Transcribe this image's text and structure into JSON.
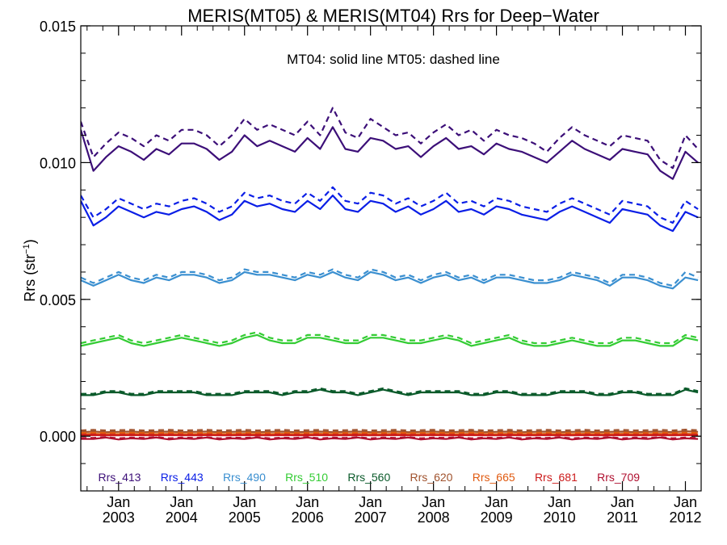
{
  "chart_data": {
    "type": "line",
    "title": "MERIS(MT05) & MERIS(MT04)  Rrs for Deep−Water",
    "annotation": "MT04: solid line   MT05: dashed line",
    "ylabel_main": "Rrs (str",
    "ylabel_sup": "−1",
    "ylabel_close": ")",
    "xlabel": "",
    "xlim": [
      2002.4,
      2012.25
    ],
    "ylim": [
      -0.002,
      0.015
    ],
    "yticks": [
      {
        "value": 0.0,
        "label": "0.000"
      },
      {
        "value": 0.005,
        "label": "0.005"
      },
      {
        "value": 0.01,
        "label": "0.010"
      },
      {
        "value": 0.015,
        "label": "0.015"
      }
    ],
    "xticks": [
      {
        "value": 2003,
        "month": "Jan",
        "year": "2003"
      },
      {
        "value": 2004,
        "month": "Jan",
        "year": "2004"
      },
      {
        "value": 2005,
        "month": "Jan",
        "year": "2005"
      },
      {
        "value": 2006,
        "month": "Jan",
        "year": "2006"
      },
      {
        "value": 2007,
        "month": "Jan",
        "year": "2007"
      },
      {
        "value": 2008,
        "month": "Jan",
        "year": "2008"
      },
      {
        "value": 2009,
        "month": "Jan",
        "year": "2009"
      },
      {
        "value": 2010,
        "month": "Jan",
        "year": "2010"
      },
      {
        "value": 2011,
        "month": "Jan",
        "year": "2011"
      },
      {
        "value": 2012,
        "month": "Jan",
        "year": "2012"
      }
    ],
    "grid": false,
    "legend_position": "bottom",
    "x": [
      2002.4,
      2002.6,
      2002.8,
      2003.0,
      2003.2,
      2003.4,
      2003.6,
      2003.8,
      2004.0,
      2004.2,
      2004.4,
      2004.6,
      2004.8,
      2005.0,
      2005.2,
      2005.4,
      2005.6,
      2005.8,
      2006.0,
      2006.2,
      2006.4,
      2006.6,
      2006.8,
      2007.0,
      2007.2,
      2007.4,
      2007.6,
      2007.8,
      2008.0,
      2008.2,
      2008.4,
      2008.6,
      2008.8,
      2009.0,
      2009.2,
      2009.4,
      2009.6,
      2009.8,
      2010.0,
      2010.2,
      2010.4,
      2010.6,
      2010.8,
      2011.0,
      2011.2,
      2011.4,
      2011.6,
      2011.8,
      2012.0,
      2012.2
    ],
    "series": [
      {
        "name": "Rrs_413",
        "color": "#3c0f78",
        "mt04": [
          0.0112,
          0.0097,
          0.0102,
          0.0106,
          0.0104,
          0.0101,
          0.0105,
          0.0103,
          0.0107,
          0.0107,
          0.0105,
          0.0101,
          0.0104,
          0.011,
          0.0106,
          0.0108,
          0.0106,
          0.0104,
          0.0109,
          0.0105,
          0.0113,
          0.0105,
          0.0104,
          0.0109,
          0.0108,
          0.0105,
          0.0106,
          0.0102,
          0.0106,
          0.0109,
          0.0105,
          0.0106,
          0.0103,
          0.0107,
          0.0105,
          0.0104,
          0.0102,
          0.01,
          0.0104,
          0.0108,
          0.0105,
          0.0103,
          0.0101,
          0.0105,
          0.0104,
          0.0103,
          0.0097,
          0.0094,
          0.0104,
          0.01
        ],
        "mt05": [
          0.0115,
          0.0102,
          0.0107,
          0.0111,
          0.0109,
          0.0106,
          0.011,
          0.0108,
          0.0112,
          0.0112,
          0.011,
          0.0106,
          0.011,
          0.0116,
          0.0112,
          0.0114,
          0.0112,
          0.011,
          0.0115,
          0.011,
          0.012,
          0.0111,
          0.0109,
          0.0116,
          0.0113,
          0.011,
          0.0111,
          0.0107,
          0.0111,
          0.0114,
          0.011,
          0.0112,
          0.0108,
          0.0112,
          0.011,
          0.0109,
          0.0107,
          0.0104,
          0.0109,
          0.0113,
          0.011,
          0.0108,
          0.0106,
          0.011,
          0.0109,
          0.0108,
          0.0101,
          0.0098,
          0.011,
          0.0105
        ]
      },
      {
        "name": "Rrs_443",
        "color": "#0a1ee6",
        "mt04": [
          0.0086,
          0.0077,
          0.008,
          0.0084,
          0.0082,
          0.008,
          0.0082,
          0.0081,
          0.0083,
          0.0084,
          0.0082,
          0.0079,
          0.0081,
          0.0086,
          0.0084,
          0.0085,
          0.0083,
          0.0082,
          0.0086,
          0.0083,
          0.0088,
          0.0083,
          0.0082,
          0.0086,
          0.0085,
          0.0082,
          0.0084,
          0.0081,
          0.0083,
          0.0086,
          0.0082,
          0.0083,
          0.0081,
          0.0084,
          0.0083,
          0.0081,
          0.008,
          0.0079,
          0.0082,
          0.0084,
          0.0082,
          0.008,
          0.0078,
          0.0083,
          0.0082,
          0.0081,
          0.0077,
          0.0075,
          0.0082,
          0.008
        ],
        "mt05": [
          0.0088,
          0.008,
          0.0083,
          0.0087,
          0.0085,
          0.0083,
          0.0085,
          0.0084,
          0.0086,
          0.0087,
          0.0085,
          0.0082,
          0.0084,
          0.0089,
          0.0087,
          0.0088,
          0.0086,
          0.0085,
          0.0089,
          0.0086,
          0.0091,
          0.0086,
          0.0085,
          0.0089,
          0.0088,
          0.0085,
          0.0087,
          0.0084,
          0.0086,
          0.0089,
          0.0085,
          0.0086,
          0.0084,
          0.0087,
          0.0086,
          0.0084,
          0.0083,
          0.0082,
          0.0085,
          0.0087,
          0.0085,
          0.0083,
          0.0081,
          0.0086,
          0.0085,
          0.0084,
          0.008,
          0.0078,
          0.0086,
          0.0083
        ]
      },
      {
        "name": "Rrs_490",
        "color": "#3a8fd0",
        "mt04": [
          0.0057,
          0.0055,
          0.0057,
          0.0059,
          0.0057,
          0.0056,
          0.0058,
          0.0057,
          0.0059,
          0.0059,
          0.0058,
          0.0056,
          0.0057,
          0.006,
          0.0059,
          0.0059,
          0.0058,
          0.0057,
          0.0059,
          0.0058,
          0.006,
          0.0058,
          0.0057,
          0.006,
          0.0059,
          0.0057,
          0.0058,
          0.0056,
          0.0058,
          0.0059,
          0.0057,
          0.0058,
          0.0056,
          0.0058,
          0.0058,
          0.0057,
          0.0056,
          0.0056,
          0.0057,
          0.0059,
          0.0058,
          0.0057,
          0.0055,
          0.0058,
          0.0058,
          0.0057,
          0.0055,
          0.0054,
          0.0058,
          0.0057
        ],
        "mt05": [
          0.0058,
          0.0056,
          0.0058,
          0.006,
          0.0058,
          0.0057,
          0.0059,
          0.0058,
          0.006,
          0.006,
          0.0059,
          0.0057,
          0.0058,
          0.0061,
          0.006,
          0.006,
          0.0059,
          0.0058,
          0.006,
          0.0059,
          0.0061,
          0.0059,
          0.0058,
          0.0061,
          0.006,
          0.0058,
          0.0059,
          0.0057,
          0.0059,
          0.006,
          0.0058,
          0.0059,
          0.0057,
          0.0059,
          0.0059,
          0.0058,
          0.0057,
          0.0057,
          0.0058,
          0.006,
          0.0059,
          0.0058,
          0.0056,
          0.0059,
          0.0059,
          0.0058,
          0.0056,
          0.0055,
          0.006,
          0.0058
        ]
      },
      {
        "name": "Rrs_510",
        "color": "#33cc33",
        "mt04": [
          0.0033,
          0.0034,
          0.0035,
          0.0036,
          0.0034,
          0.0033,
          0.0034,
          0.0035,
          0.0036,
          0.0035,
          0.0034,
          0.0033,
          0.0034,
          0.0036,
          0.0037,
          0.0035,
          0.0034,
          0.0034,
          0.0036,
          0.0036,
          0.0035,
          0.0034,
          0.0034,
          0.0036,
          0.0036,
          0.0035,
          0.0034,
          0.0034,
          0.0035,
          0.0036,
          0.0035,
          0.0033,
          0.0034,
          0.0035,
          0.0036,
          0.0034,
          0.0033,
          0.0033,
          0.0034,
          0.0035,
          0.0034,
          0.0033,
          0.0033,
          0.0035,
          0.0035,
          0.0034,
          0.0033,
          0.0033,
          0.0036,
          0.0035
        ],
        "mt05": [
          0.0034,
          0.0035,
          0.0036,
          0.0037,
          0.0035,
          0.0034,
          0.0035,
          0.0036,
          0.0037,
          0.0036,
          0.0035,
          0.0034,
          0.0035,
          0.0037,
          0.0038,
          0.0036,
          0.0035,
          0.0035,
          0.0037,
          0.0037,
          0.0036,
          0.0035,
          0.0035,
          0.0037,
          0.0037,
          0.0036,
          0.0035,
          0.0035,
          0.0036,
          0.0037,
          0.0036,
          0.0034,
          0.0035,
          0.0036,
          0.0037,
          0.0035,
          0.0034,
          0.0034,
          0.0035,
          0.0036,
          0.0035,
          0.0034,
          0.0034,
          0.0036,
          0.0036,
          0.0035,
          0.0034,
          0.0034,
          0.0037,
          0.0036
        ]
      },
      {
        "name": "Rrs_560",
        "color": "#0a5a2a",
        "mt04": [
          0.0015,
          0.0015,
          0.0016,
          0.0016,
          0.0015,
          0.0015,
          0.0016,
          0.0016,
          0.0016,
          0.0016,
          0.0015,
          0.0015,
          0.0015,
          0.0016,
          0.0016,
          0.0016,
          0.0015,
          0.0016,
          0.0016,
          0.0017,
          0.0016,
          0.0016,
          0.0015,
          0.0016,
          0.0017,
          0.0016,
          0.0015,
          0.0016,
          0.0016,
          0.0016,
          0.0016,
          0.0015,
          0.0015,
          0.0016,
          0.0016,
          0.0015,
          0.0015,
          0.0015,
          0.0016,
          0.0016,
          0.0016,
          0.0015,
          0.0015,
          0.0016,
          0.0016,
          0.0015,
          0.0015,
          0.0015,
          0.0017,
          0.0016
        ],
        "mt05": [
          0.00155,
          0.00155,
          0.00165,
          0.00165,
          0.00155,
          0.00155,
          0.00165,
          0.00165,
          0.00165,
          0.00165,
          0.00155,
          0.00155,
          0.00155,
          0.00165,
          0.00165,
          0.00165,
          0.00155,
          0.00165,
          0.00165,
          0.00175,
          0.00165,
          0.00165,
          0.00155,
          0.00165,
          0.00175,
          0.00165,
          0.00155,
          0.00165,
          0.00165,
          0.00165,
          0.00165,
          0.00155,
          0.00155,
          0.00165,
          0.00165,
          0.00155,
          0.00155,
          0.00155,
          0.00165,
          0.00165,
          0.00165,
          0.00155,
          0.00155,
          0.00165,
          0.00165,
          0.00155,
          0.00155,
          0.00155,
          0.00175,
          0.00165
        ]
      },
      {
        "name": "Rrs_620",
        "color": "#a0522d",
        "mt04": [
          0.00015,
          0.00017,
          0.00015,
          0.00016,
          0.00017,
          0.00015,
          0.00016,
          0.00017,
          0.00015,
          0.00016,
          0.00017,
          0.00015,
          0.00016,
          0.00017,
          0.00015,
          0.00016,
          0.00017,
          0.00015,
          0.00016,
          0.00017,
          0.00015,
          0.00016,
          0.00017,
          0.00015,
          0.00016,
          0.00017,
          0.00015,
          0.00016,
          0.00017,
          0.00015,
          0.00016,
          0.00017,
          0.00015,
          0.00016,
          0.00017,
          0.00015,
          0.00016,
          0.00017,
          0.00015,
          0.00016,
          0.00017,
          0.00015,
          0.00016,
          0.00017,
          0.00015,
          0.00016,
          0.00017,
          0.00015,
          0.00018,
          0.00016
        ],
        "mt05": [
          0.00021,
          0.00023,
          0.00021,
          0.00022,
          0.00023,
          0.00021,
          0.00022,
          0.00023,
          0.00021,
          0.00022,
          0.00023,
          0.00021,
          0.00022,
          0.00023,
          0.00021,
          0.00022,
          0.00023,
          0.00021,
          0.00022,
          0.00023,
          0.00021,
          0.00022,
          0.00023,
          0.00021,
          0.00022,
          0.00023,
          0.00021,
          0.00022,
          0.00023,
          0.00021,
          0.00022,
          0.00023,
          0.00021,
          0.00022,
          0.00023,
          0.00021,
          0.00022,
          0.00023,
          0.00021,
          0.00022,
          0.00023,
          0.00021,
          0.00022,
          0.00023,
          0.00021,
          0.00022,
          0.00023,
          0.00021,
          0.00024,
          0.00022
        ]
      },
      {
        "name": "Rrs_665",
        "color": "#e05a10",
        "mt04": [
          8e-05,
          9e-05,
          8e-05,
          8e-05,
          9e-05,
          8e-05,
          8e-05,
          9e-05,
          8e-05,
          8e-05,
          9e-05,
          8e-05,
          8e-05,
          9e-05,
          8e-05,
          8e-05,
          9e-05,
          8e-05,
          8e-05,
          9e-05,
          8e-05,
          8e-05,
          9e-05,
          8e-05,
          8e-05,
          9e-05,
          8e-05,
          8e-05,
          9e-05,
          8e-05,
          8e-05,
          9e-05,
          8e-05,
          8e-05,
          9e-05,
          8e-05,
          8e-05,
          9e-05,
          8e-05,
          8e-05,
          9e-05,
          8e-05,
          8e-05,
          9e-05,
          8e-05,
          8e-05,
          9e-05,
          8e-05,
          9e-05,
          8e-05
        ],
        "mt05": [
          0.00012,
          0.00013,
          0.00012,
          0.00012,
          0.00013,
          0.00012,
          0.00012,
          0.00013,
          0.00012,
          0.00012,
          0.00013,
          0.00012,
          0.00012,
          0.00013,
          0.00012,
          0.00012,
          0.00013,
          0.00012,
          0.00012,
          0.00013,
          0.00012,
          0.00012,
          0.00013,
          0.00012,
          0.00012,
          0.00013,
          0.00012,
          0.00012,
          0.00013,
          0.00012,
          0.00012,
          0.00013,
          0.00012,
          0.00012,
          0.00013,
          0.00012,
          0.00012,
          0.00013,
          0.00012,
          0.00012,
          0.00013,
          0.00012,
          0.00012,
          0.00013,
          0.00012,
          0.00012,
          0.00013,
          0.00012,
          0.00013,
          0.00012
        ]
      },
      {
        "name": "Rrs_681",
        "color": "#cc1a1a",
        "mt04": [
          3e-05,
          4e-05,
          3e-05,
          3e-05,
          4e-05,
          3e-05,
          3e-05,
          4e-05,
          3e-05,
          3e-05,
          4e-05,
          3e-05,
          3e-05,
          4e-05,
          3e-05,
          3e-05,
          4e-05,
          3e-05,
          3e-05,
          4e-05,
          3e-05,
          3e-05,
          4e-05,
          3e-05,
          3e-05,
          4e-05,
          3e-05,
          3e-05,
          4e-05,
          3e-05,
          3e-05,
          4e-05,
          3e-05,
          3e-05,
          4e-05,
          3e-05,
          3e-05,
          4e-05,
          3e-05,
          3e-05,
          4e-05,
          3e-05,
          3e-05,
          4e-05,
          3e-05,
          3e-05,
          4e-05,
          3e-05,
          4e-05,
          3e-05
        ],
        "mt05": [
          5e-05,
          6e-05,
          5e-05,
          5e-05,
          6e-05,
          5e-05,
          5e-05,
          6e-05,
          5e-05,
          5e-05,
          6e-05,
          5e-05,
          5e-05,
          6e-05,
          5e-05,
          5e-05,
          6e-05,
          5e-05,
          5e-05,
          6e-05,
          5e-05,
          5e-05,
          6e-05,
          5e-05,
          5e-05,
          6e-05,
          5e-05,
          5e-05,
          6e-05,
          5e-05,
          5e-05,
          6e-05,
          5e-05,
          5e-05,
          6e-05,
          5e-05,
          5e-05,
          6e-05,
          5e-05,
          5e-05,
          6e-05,
          5e-05,
          5e-05,
          6e-05,
          5e-05,
          5e-05,
          6e-05,
          5e-05,
          6e-05,
          5e-05
        ]
      },
      {
        "name": "Rrs_709",
        "color": "#b01030",
        "mt04": [
          -0.0001,
          -0.0001,
          -5e-05,
          -0.00012,
          -8e-05,
          -0.0001,
          -5e-05,
          -0.00012,
          -8e-05,
          -0.0001,
          -5e-05,
          -0.00012,
          -8e-05,
          -0.0001,
          -5e-05,
          -0.00012,
          -8e-05,
          -0.0001,
          -5e-05,
          -0.00012,
          -8e-05,
          -0.0001,
          -5e-05,
          -0.00012,
          -8e-05,
          -0.0001,
          -5e-05,
          -0.00012,
          -8e-05,
          -0.0001,
          -5e-05,
          -0.00012,
          -8e-05,
          -0.0001,
          -5e-05,
          -0.00012,
          -8e-05,
          -0.0001,
          -5e-05,
          -0.00012,
          -8e-05,
          -0.0001,
          -5e-05,
          -0.00012,
          -8e-05,
          -0.0001,
          -5e-05,
          -0.00012,
          -8e-05,
          -0.0001
        ],
        "mt05": [
          -6e-05,
          -6e-05,
          -3e-05,
          -8e-05,
          -5e-05,
          -6e-05,
          -3e-05,
          -8e-05,
          -5e-05,
          -6e-05,
          -3e-05,
          -8e-05,
          -5e-05,
          -6e-05,
          -3e-05,
          -8e-05,
          -5e-05,
          -6e-05,
          -3e-05,
          -8e-05,
          -5e-05,
          -6e-05,
          -3e-05,
          -8e-05,
          -5e-05,
          -6e-05,
          -3e-05,
          -8e-05,
          -5e-05,
          -6e-05,
          -3e-05,
          -8e-05,
          -5e-05,
          -6e-05,
          -3e-05,
          -8e-05,
          -5e-05,
          -6e-05,
          -3e-05,
          -8e-05,
          -5e-05,
          -6e-05,
          -3e-05,
          -8e-05,
          -5e-05,
          -6e-05,
          -3e-05,
          -8e-05,
          -5e-05,
          -6e-05
        ]
      }
    ]
  }
}
